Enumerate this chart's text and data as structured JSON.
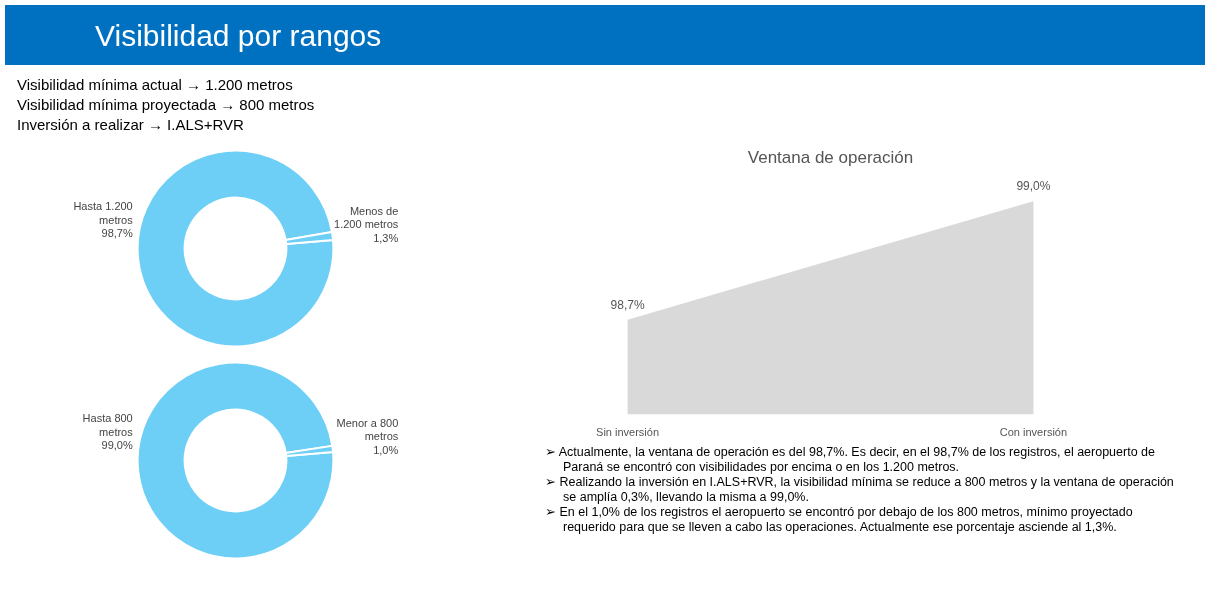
{
  "chart_data": [
    {
      "type": "other",
      "title": "Visibilidad por rangos",
      "annotations": [
        "Visibilidad mínima actual → 1.200 metros",
        "Visibilidad mínima proyectada → 800 metros",
        "Inversión a realizar → I.ALS+RVR"
      ]
    },
    {
      "type": "donut",
      "categories": [
        "Hasta 1.200 metros",
        "Menos de 1.200 metros"
      ],
      "values": [
        98.7,
        1.3
      ],
      "value_labels": [
        "98,7%",
        "1,3%"
      ],
      "colors": [
        "#6dcff6",
        "#6dcff6"
      ]
    },
    {
      "type": "donut",
      "categories": [
        "Hasta 800 metros",
        "Menor a 800 metros"
      ],
      "values": [
        99.0,
        1.0
      ],
      "value_labels": [
        "99,0%",
        "1,0%"
      ],
      "colors": [
        "#6dcff6",
        "#6dcff6"
      ]
    },
    {
      "type": "area",
      "title": "Ventana de operación",
      "categories": [
        "Sin inversión",
        "Con inversión"
      ],
      "values": [
        98.7,
        99.0
      ],
      "value_labels": [
        "98,7%",
        "99,0%"
      ],
      "color": "#d9d9d9"
    },
    {
      "type": "other",
      "annotations": [
        "➢ Actualmente, la ventana de operación es del 98,7%. Es decir, en el 98,7% de los registros, el aeropuerto de Paraná se encontró con visibilidades por encima o en los 1.200 metros.",
        "➢ Realizando la inversión en I.ALS+RVR, la visibilidad mínima se reduce a 800 metros y la ventana de operación se amplía 0,3%, llevando la misma a 99,0%.",
        "➢ En el 1,0% de los registros el aeropuerto se encontró por debajo de los 800 metros, mínimo proyectado requerido para que se lleven a cabo las operaciones. Actualmente ese porcentaje asciende al 1,3%."
      ]
    }
  ]
}
